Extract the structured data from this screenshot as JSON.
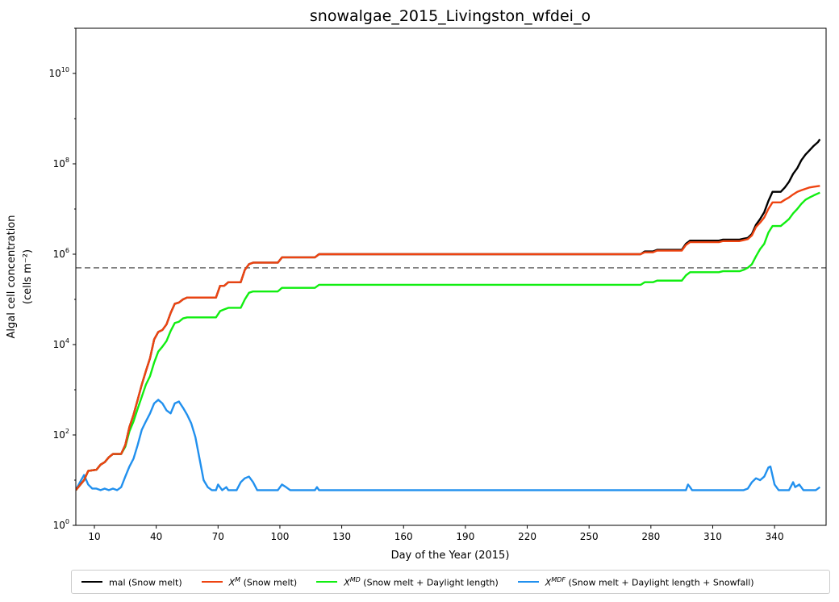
{
  "chart_data": {
    "type": "line",
    "title": "snowalgae_2015_Livingston_wfdei_o",
    "xlabel": "Day of the Year (2015)",
    "ylabel_line1": "Algal cell concentration",
    "ylabel_line2": "(cells m⁻²)",
    "xlim": [
      1,
      365
    ],
    "xticks": [
      10,
      40,
      70,
      100,
      130,
      160,
      190,
      220,
      250,
      280,
      310,
      340
    ],
    "ylim_exp": [
      0,
      11
    ],
    "yscale": "log",
    "yticks_exp": [
      0,
      2,
      4,
      6,
      8,
      10
    ],
    "yticks_labels": [
      "10",
      "10",
      "10",
      "10",
      "10",
      "10"
    ],
    "yticks_sup": [
      "0",
      "2",
      "4",
      "6",
      "8",
      "10"
    ],
    "threshold_line": {
      "value": 500000,
      "style": "dashed",
      "color": "#808080"
    },
    "grid": false,
    "legend_placement": "bottom",
    "series": [
      {
        "name": "mal (Snow melt)",
        "legend_x": "",
        "legend_sup": "",
        "legend_rest": "mal (Snow melt)",
        "color": "#000000",
        "points": [
          [
            1,
            6
          ],
          [
            5,
            10
          ],
          [
            7,
            16
          ],
          [
            11,
            17
          ],
          [
            13,
            22
          ],
          [
            15,
            25
          ],
          [
            17,
            32
          ],
          [
            19,
            38
          ],
          [
            23,
            38
          ],
          [
            25,
            60
          ],
          [
            27,
            150
          ],
          [
            29,
            280
          ],
          [
            31,
            600
          ],
          [
            33,
            1300
          ],
          [
            35,
            2600
          ],
          [
            37,
            5000
          ],
          [
            39,
            13000
          ],
          [
            41,
            19000
          ],
          [
            43,
            21000
          ],
          [
            45,
            28000
          ],
          [
            47,
            50000
          ],
          [
            49,
            80000
          ],
          [
            51,
            85000
          ],
          [
            53,
            100000
          ],
          [
            55,
            110000
          ],
          [
            69,
            110000
          ],
          [
            71,
            200000
          ],
          [
            73,
            200000
          ],
          [
            75,
            240000
          ],
          [
            81,
            240000
          ],
          [
            83,
            450000
          ],
          [
            85,
            600000
          ],
          [
            87,
            650000
          ],
          [
            99,
            650000
          ],
          [
            101,
            850000
          ],
          [
            117,
            850000
          ],
          [
            119,
            1000000
          ],
          [
            275,
            1000000
          ],
          [
            277,
            1150000
          ],
          [
            281,
            1150000
          ],
          [
            283,
            1250000
          ],
          [
            295,
            1250000
          ],
          [
            297,
            1700000
          ],
          [
            299,
            2000000
          ],
          [
            313,
            2000000
          ],
          [
            315,
            2100000
          ],
          [
            323,
            2100000
          ],
          [
            325,
            2200000
          ],
          [
            327,
            2300000
          ],
          [
            329,
            2800000
          ],
          [
            331,
            4500000
          ],
          [
            333,
            6000000
          ],
          [
            335,
            8500000
          ],
          [
            337,
            15000000
          ],
          [
            339,
            24000000
          ],
          [
            343,
            24000000
          ],
          [
            345,
            30000000
          ],
          [
            347,
            40000000
          ],
          [
            349,
            60000000
          ],
          [
            351,
            80000000
          ],
          [
            353,
            120000000
          ],
          [
            355,
            160000000
          ],
          [
            357,
            200000000
          ],
          [
            359,
            250000000
          ],
          [
            361,
            300000000
          ],
          [
            362,
            350000000
          ]
        ]
      },
      {
        "name": "X^M (Snow melt)",
        "legend_x": "X",
        "legend_sup": "M",
        "legend_rest": " (Snow melt)",
        "color": "#ee4411",
        "points": [
          [
            1,
            6
          ],
          [
            5,
            10
          ],
          [
            7,
            16
          ],
          [
            11,
            17
          ],
          [
            13,
            22
          ],
          [
            15,
            25
          ],
          [
            17,
            32
          ],
          [
            19,
            38
          ],
          [
            23,
            38
          ],
          [
            25,
            60
          ],
          [
            27,
            150
          ],
          [
            29,
            280
          ],
          [
            31,
            600
          ],
          [
            33,
            1300
          ],
          [
            35,
            2600
          ],
          [
            37,
            5000
          ],
          [
            39,
            13000
          ],
          [
            41,
            19000
          ],
          [
            43,
            21000
          ],
          [
            45,
            28000
          ],
          [
            47,
            50000
          ],
          [
            49,
            80000
          ],
          [
            51,
            85000
          ],
          [
            53,
            100000
          ],
          [
            55,
            110000
          ],
          [
            69,
            110000
          ],
          [
            71,
            200000
          ],
          [
            73,
            200000
          ],
          [
            75,
            240000
          ],
          [
            81,
            240000
          ],
          [
            83,
            450000
          ],
          [
            85,
            600000
          ],
          [
            87,
            650000
          ],
          [
            99,
            650000
          ],
          [
            101,
            850000
          ],
          [
            117,
            850000
          ],
          [
            119,
            1000000
          ],
          [
            275,
            1000000
          ],
          [
            277,
            1100000
          ],
          [
            281,
            1100000
          ],
          [
            283,
            1200000
          ],
          [
            295,
            1200000
          ],
          [
            297,
            1600000
          ],
          [
            299,
            1850000
          ],
          [
            313,
            1850000
          ],
          [
            315,
            1950000
          ],
          [
            323,
            1950000
          ],
          [
            325,
            2050000
          ],
          [
            327,
            2150000
          ],
          [
            329,
            2600000
          ],
          [
            331,
            4000000
          ],
          [
            333,
            5000000
          ],
          [
            335,
            6500000
          ],
          [
            337,
            10000000
          ],
          [
            339,
            14000000
          ],
          [
            343,
            14000000
          ],
          [
            345,
            16000000
          ],
          [
            347,
            18000000
          ],
          [
            349,
            21000000
          ],
          [
            351,
            24000000
          ],
          [
            353,
            26000000
          ],
          [
            355,
            28000000
          ],
          [
            357,
            30000000
          ],
          [
            359,
            31000000
          ],
          [
            361,
            32000000
          ],
          [
            362,
            32500000
          ]
        ]
      },
      {
        "name": "X^MD (Snow melt + Daylight length)",
        "legend_x": "X",
        "legend_sup": "MD",
        "legend_rest": " (Snow melt + Daylight length)",
        "color": "#11ee11",
        "points": [
          [
            1,
            6
          ],
          [
            5,
            10
          ],
          [
            7,
            16
          ],
          [
            11,
            17
          ],
          [
            13,
            22
          ],
          [
            15,
            25
          ],
          [
            17,
            32
          ],
          [
            19,
            38
          ],
          [
            23,
            38
          ],
          [
            25,
            55
          ],
          [
            27,
            120
          ],
          [
            29,
            200
          ],
          [
            31,
            380
          ],
          [
            33,
            700
          ],
          [
            35,
            1300
          ],
          [
            37,
            2000
          ],
          [
            39,
            4000
          ],
          [
            41,
            7000
          ],
          [
            43,
            9000
          ],
          [
            45,
            12000
          ],
          [
            47,
            20000
          ],
          [
            49,
            30000
          ],
          [
            51,
            32000
          ],
          [
            53,
            38000
          ],
          [
            55,
            40000
          ],
          [
            69,
            40000
          ],
          [
            71,
            55000
          ],
          [
            73,
            60000
          ],
          [
            75,
            65000
          ],
          [
            81,
            65000
          ],
          [
            83,
            100000
          ],
          [
            85,
            140000
          ],
          [
            87,
            150000
          ],
          [
            99,
            150000
          ],
          [
            101,
            180000
          ],
          [
            117,
            180000
          ],
          [
            119,
            210000
          ],
          [
            275,
            210000
          ],
          [
            277,
            240000
          ],
          [
            281,
            240000
          ],
          [
            283,
            260000
          ],
          [
            295,
            260000
          ],
          [
            297,
            340000
          ],
          [
            299,
            400000
          ],
          [
            313,
            400000
          ],
          [
            315,
            420000
          ],
          [
            323,
            420000
          ],
          [
            325,
            450000
          ],
          [
            327,
            500000
          ],
          [
            329,
            600000
          ],
          [
            331,
            900000
          ],
          [
            333,
            1300000
          ],
          [
            335,
            1700000
          ],
          [
            337,
            3000000
          ],
          [
            339,
            4200000
          ],
          [
            343,
            4200000
          ],
          [
            345,
            5000000
          ],
          [
            347,
            6000000
          ],
          [
            349,
            8000000
          ],
          [
            351,
            10000000
          ],
          [
            353,
            13000000
          ],
          [
            355,
            16000000
          ],
          [
            357,
            18000000
          ],
          [
            359,
            20000000
          ],
          [
            361,
            22000000
          ],
          [
            362,
            23000000
          ]
        ]
      },
      {
        "name": "X^MDF (Snow melt + Daylight length + Snowfall)",
        "legend_x": "X",
        "legend_sup": "MDF",
        "legend_rest": " (Snow melt + Daylight length + Snowfall)",
        "color": "#2190ee",
        "points": [
          [
            1,
            6
          ],
          [
            3,
            9
          ],
          [
            5,
            13
          ],
          [
            7,
            8
          ],
          [
            9,
            6.5
          ],
          [
            11,
            6.5
          ],
          [
            13,
            6
          ],
          [
            15,
            6.5
          ],
          [
            17,
            6
          ],
          [
            19,
            6.5
          ],
          [
            21,
            6
          ],
          [
            23,
            7
          ],
          [
            25,
            12
          ],
          [
            27,
            20
          ],
          [
            29,
            30
          ],
          [
            31,
            60
          ],
          [
            33,
            130
          ],
          [
            35,
            200
          ],
          [
            37,
            300
          ],
          [
            39,
            500
          ],
          [
            41,
            600
          ],
          [
            43,
            500
          ],
          [
            45,
            350
          ],
          [
            47,
            300
          ],
          [
            49,
            500
          ],
          [
            51,
            550
          ],
          [
            53,
            400
          ],
          [
            55,
            280
          ],
          [
            57,
            180
          ],
          [
            59,
            90
          ],
          [
            61,
            30
          ],
          [
            63,
            10
          ],
          [
            65,
            7
          ],
          [
            67,
            6
          ],
          [
            69,
            6
          ],
          [
            70,
            8
          ],
          [
            72,
            6
          ],
          [
            74,
            7
          ],
          [
            75,
            6
          ],
          [
            79,
            6
          ],
          [
            81,
            9
          ],
          [
            83,
            11
          ],
          [
            85,
            12
          ],
          [
            87,
            9
          ],
          [
            89,
            6
          ],
          [
            99,
            6
          ],
          [
            101,
            8
          ],
          [
            103,
            7
          ],
          [
            105,
            6
          ],
          [
            117,
            6
          ],
          [
            118,
            7
          ],
          [
            119,
            6
          ],
          [
            297,
            6
          ],
          [
            298,
            8
          ],
          [
            299,
            7
          ],
          [
            300,
            6
          ],
          [
            325,
            6
          ],
          [
            327,
            6.5
          ],
          [
            329,
            9
          ],
          [
            331,
            11
          ],
          [
            333,
            10
          ],
          [
            335,
            12
          ],
          [
            337,
            19
          ],
          [
            338,
            20
          ],
          [
            340,
            8
          ],
          [
            342,
            6
          ],
          [
            347,
            6
          ],
          [
            349,
            9
          ],
          [
            350,
            7
          ],
          [
            352,
            8
          ],
          [
            354,
            6
          ],
          [
            360,
            6
          ],
          [
            362,
            7
          ]
        ]
      }
    ]
  }
}
